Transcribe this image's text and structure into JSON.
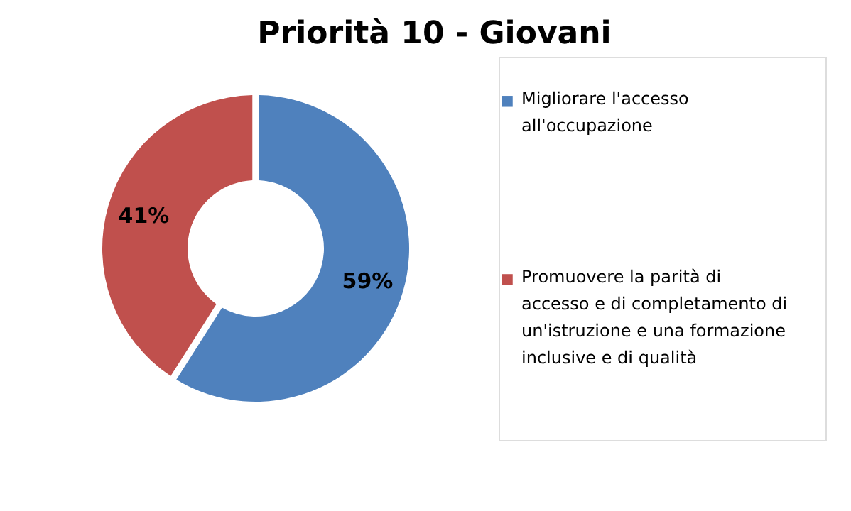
{
  "chart_data": {
    "type": "donut",
    "title": "Priorità 10 - Giovani",
    "categories": [
      "Migliorare l'accesso all'occupazione",
      "Promuovere la parità di accesso e di completamento di un'istruzione e una formazione inclusive e di qualità"
    ],
    "values": [
      59,
      41
    ],
    "colors": [
      "#4f81bd",
      "#c0504d"
    ],
    "value_labels": [
      "59%",
      "41%"
    ],
    "legend": "right"
  }
}
